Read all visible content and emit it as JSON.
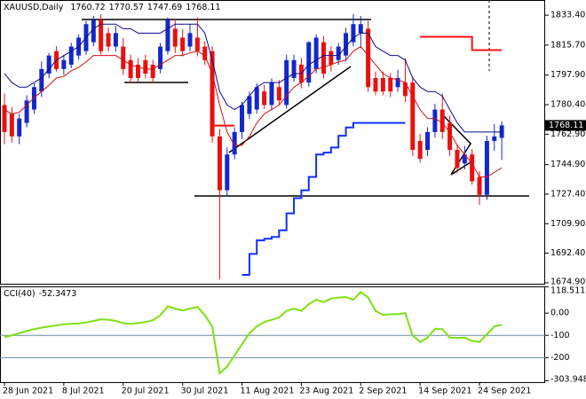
{
  "chart_data": [
    {
      "type": "candlestick",
      "title": "XAUUSD,Daily",
      "categories": [
        "28 Jun 2021",
        null,
        null,
        null,
        null,
        null,
        null,
        null,
        "8 Jul 2021",
        null,
        null,
        null,
        null,
        null,
        null,
        null,
        "20 Jul 2021",
        null,
        null,
        null,
        null,
        null,
        null,
        null,
        "30 Jul 2021",
        null,
        null,
        null,
        null,
        null,
        null,
        null,
        "11 Aug 2021",
        null,
        null,
        null,
        null,
        null,
        null,
        null,
        "23 Aug 2021",
        null,
        null,
        null,
        null,
        null,
        null,
        null,
        "2 Sep 2021",
        null,
        null,
        null,
        null,
        null,
        null,
        null,
        "14 Sep 2021",
        null,
        null,
        null,
        null,
        null,
        null,
        null,
        "24 Sep 2021",
        null,
        null,
        null
      ],
      "open": [
        1780.2,
        1774.9,
        1761.6,
        1769.6,
        1777.5,
        1788.2,
        1798.8,
        1812.1,
        1801.5,
        1804.1,
        1809.5,
        1812.1,
        1817.4,
        1830.7,
        1822.8,
        1814.8,
        1814.8,
        1806.8,
        1804.1,
        1806.8,
        1804.1,
        1801.5,
        1812.1,
        1825.4,
        1820.1,
        1814.8,
        1820.1,
        1814.8,
        1812.1,
        1761.6,
        1729.7,
        1750.9,
        1764.2,
        1774.9,
        1777.5,
        1788.2,
        1780.2,
        1790.8,
        1780.2,
        1796.2,
        1804.1,
        1793.5,
        1801.5,
        1817.4,
        1812.1,
        1806.8,
        1809.5,
        1817.4,
        1822.8,
        1825.4,
        1796.2,
        1796.2,
        1796.2,
        1790.8,
        1793.5,
        1793.5,
        1758.9,
        1753.6,
        1764.2,
        1777.5,
        1769.6,
        1753.6,
        1745.6,
        1750.9,
        1737.6,
        1727.0,
        1758.9,
        1760.72
      ],
      "high": [
        1787,
        1779,
        1775,
        1786,
        1793,
        1806,
        1811,
        1815,
        1810,
        1817,
        1822,
        1830,
        1833,
        1834,
        1826,
        1827,
        1820,
        1810,
        1808,
        1810,
        1807,
        1817,
        1832,
        1831,
        1825,
        1828,
        1832,
        1818,
        1815,
        1766,
        1755,
        1767,
        1782,
        1788,
        1793,
        1792,
        1796,
        1795,
        1810,
        1810,
        1808,
        1818,
        1822,
        1821,
        1815,
        1817,
        1826,
        1834,
        1833,
        1830,
        1800,
        1800,
        1799,
        1801,
        1808,
        1797,
        1763,
        1767,
        1781,
        1787,
        1774,
        1757,
        1756,
        1754,
        1741,
        1762,
        1769,
        1770.57
      ],
      "low": [
        1757,
        1758,
        1757,
        1767,
        1775,
        1785,
        1796,
        1800,
        1798,
        1802,
        1807,
        1810,
        1815,
        1810,
        1812,
        1812,
        1798,
        1793,
        1794,
        1796,
        1793,
        1799,
        1810,
        1811,
        1809,
        1812,
        1809,
        1804,
        1758,
        1677,
        1726,
        1748,
        1760,
        1772,
        1775,
        1778,
        1777,
        1780,
        1778,
        1794,
        1790,
        1791,
        1799,
        1796,
        1800,
        1804,
        1806,
        1815,
        1814,
        1788,
        1786,
        1786,
        1785,
        1788,
        1782,
        1750,
        1746,
        1750,
        1761,
        1760,
        1750,
        1740,
        1742,
        1733,
        1721,
        1724,
        1753,
        1747.69
      ],
      "close": [
        1764.2,
        1761.6,
        1772.2,
        1782.9,
        1790.8,
        1801.5,
        1809.5,
        1801.5,
        1806.8,
        1814.8,
        1820.1,
        1828.1,
        1830.7,
        1812.1,
        1814.8,
        1822.8,
        1801.5,
        1796.2,
        1796.2,
        1798.8,
        1796.2,
        1814.8,
        1830.7,
        1814.8,
        1812.1,
        1822.8,
        1812.1,
        1806.8,
        1761.6,
        1729.7,
        1750.9,
        1764.2,
        1780.2,
        1785.5,
        1790.8,
        1780.2,
        1793.5,
        1782.9,
        1806.8,
        1806.8,
        1793.5,
        1817.4,
        1820.1,
        1798.8,
        1804.1,
        1814.8,
        1822.8,
        1828.1,
        1828.1,
        1790.8,
        1788.2,
        1788.2,
        1788.2,
        1796.2,
        1785.5,
        1753.6,
        1748.3,
        1764.2,
        1777.5,
        1764.2,
        1753.6,
        1743.0,
        1750.9,
        1735.0,
        1727.0,
        1758.9,
        1761.6,
        1768.11
      ],
      "colors": {
        "up": "#1428c8",
        "down": "#e81010"
      },
      "ylim": [
        1673.8,
        1842.4
      ],
      "yticks": [
        {
          "value": 1833.4,
          "label": "1833.40"
        },
        {
          "value": 1815.7,
          "label": "1815.70"
        },
        {
          "value": 1797.9,
          "label": "1797.90"
        },
        {
          "value": 1780.4,
          "label": "1780.40"
        },
        {
          "value": 1762.9,
          "label": "1762.90"
        },
        {
          "value": 1744.9,
          "label": "1744.90"
        },
        {
          "value": 1727.4,
          "label": "1727.40"
        },
        {
          "value": 1709.9,
          "label": "1709.90"
        },
        {
          "value": 1692.4,
          "label": "1692.40"
        },
        {
          "value": 1674.9,
          "label": "1674.90"
        }
      ],
      "overlays": [
        {
          "style": "line",
          "color": "#0a0a8c",
          "values": [
            1798.8,
            1793.5,
            1790.8,
            1790.8,
            1793.5,
            1796.2,
            1801.5,
            1806.8,
            1809.5,
            1812.1,
            1814.8,
            1820.1,
            1825.4,
            1828.1,
            1828.1,
            1828.1,
            1825.4,
            1825.4,
            1822.8,
            1822.8,
            1822.8,
            1822.8,
            1825.4,
            1828.1,
            1828.1,
            1828.1,
            1828.1,
            1822.8,
            1806.8,
            1788.2,
            1780.2,
            1777.5,
            1780.2,
            1785.5,
            1790.8,
            1793.5,
            1793.5,
            1793.5,
            1796.2,
            1798.8,
            1798.8,
            1804.1,
            1806.8,
            1809.5,
            1809.5,
            1809.5,
            1814.8,
            1820.1,
            1822.8,
            1822.8,
            1814.8,
            1812.1,
            1809.5,
            1809.5,
            1806.8,
            1796.2,
            1790.8,
            1788.2,
            1788.2,
            1785.5,
            1777.5,
            1769.6,
            1764.2,
            1764.2,
            1764.2,
            1764.2,
            1764.2,
            1764.2
          ]
        },
        {
          "style": "line",
          "color": "#d41010",
          "values": [
            1777.5,
            1774.9,
            1775.9,
            1780.2,
            1784.5,
            1788.2,
            1791.9,
            1796.2,
            1797.2,
            1800.4,
            1802.5,
            1805.7,
            1809.5,
            1809.5,
            1809.5,
            1809.5,
            1806.8,
            1804.1,
            1802.5,
            1801.5,
            1801.5,
            1804.1,
            1806.8,
            1809.5,
            1809.5,
            1811.1,
            1812.1,
            1809.5,
            1798.8,
            1780.2,
            1764.2,
            1756.3,
            1756.3,
            1761.6,
            1769.6,
            1774.9,
            1777.5,
            1780.2,
            1785.5,
            1790.8,
            1793.5,
            1797.2,
            1801.5,
            1802.5,
            1804.1,
            1805.7,
            1806.8,
            1812.1,
            1814.8,
            1809.5,
            1804.1,
            1798.8,
            1796.2,
            1795.1,
            1793.5,
            1785.5,
            1777.5,
            1772.2,
            1772.2,
            1769.6,
            1764.2,
            1756.3,
            1750.9,
            1745.6,
            1737.6,
            1737.6,
            1740.3,
            1743.0
          ]
        },
        {
          "style": "step",
          "color": "#ff1010",
          "values": [
            null,
            null,
            null,
            null,
            null,
            null,
            null,
            null,
            null,
            null,
            null,
            null,
            null,
            null,
            null,
            null,
            null,
            null,
            null,
            null,
            null,
            null,
            null,
            null,
            null,
            null,
            null,
            null,
            1768,
            1768,
            1768,
            1768,
            null,
            null,
            null,
            null,
            null,
            null,
            null,
            null,
            null,
            null,
            null,
            null,
            null,
            null,
            null,
            null,
            null,
            null,
            null,
            null,
            null,
            null,
            null,
            null,
            1820.6,
            1820.6,
            1820.6,
            1820.6,
            1820.6,
            1820.6,
            1820.6,
            1812.7,
            1812.7,
            1812.7,
            1812.7,
            1812.7
          ]
        },
        {
          "style": "step",
          "color": "#1030ff",
          "values": [
            null,
            null,
            null,
            null,
            null,
            null,
            null,
            null,
            null,
            null,
            null,
            null,
            null,
            null,
            null,
            null,
            null,
            null,
            null,
            null,
            null,
            null,
            null,
            null,
            null,
            null,
            null,
            null,
            null,
            null,
            null,
            null,
            1679.6,
            1692,
            1700,
            1701,
            1702,
            1706,
            1716,
            1725,
            1729.7,
            1737.6,
            1750.9,
            1752,
            1755,
            1762,
            1766.9,
            1769.6,
            1769.6,
            1769.6,
            1769.6,
            1769.6,
            1769.6,
            1769.6,
            1769.6,
            null,
            null,
            null,
            null,
            null,
            null,
            null,
            null,
            null,
            null,
            null,
            null,
            null
          ]
        }
      ]
    },
    {
      "type": "line",
      "title": "CCI(40)",
      "color": "#7fdf14",
      "values": [
        -108,
        -100,
        -90,
        -80,
        -72,
        -65,
        -60,
        -55,
        -50,
        -48,
        -46,
        -42,
        -35,
        -28,
        -30,
        -35,
        -45,
        -48,
        -45,
        -40,
        -32,
        -10,
        30,
        20,
        12,
        20,
        28,
        -10,
        -60,
        -270,
        -240,
        -190,
        -140,
        -90,
        -60,
        -40,
        -30,
        -20,
        10,
        20,
        10,
        40,
        60,
        50,
        65,
        70,
        72,
        60,
        95,
        70,
        10,
        -8,
        -5,
        -5,
        0,
        -100,
        -130,
        -110,
        -70,
        -72,
        -110,
        -112,
        -110,
        -125,
        -130,
        -95,
        -60,
        -52.3473
      ],
      "ylim": [
        -310,
        120
      ],
      "yticks": [
        118.5118,
        {
          "value": 0,
          "label": "0.00"
        },
        -100,
        -200,
        -303.9481
      ],
      "levels": [
        -100,
        -200
      ]
    }
  ]
}
